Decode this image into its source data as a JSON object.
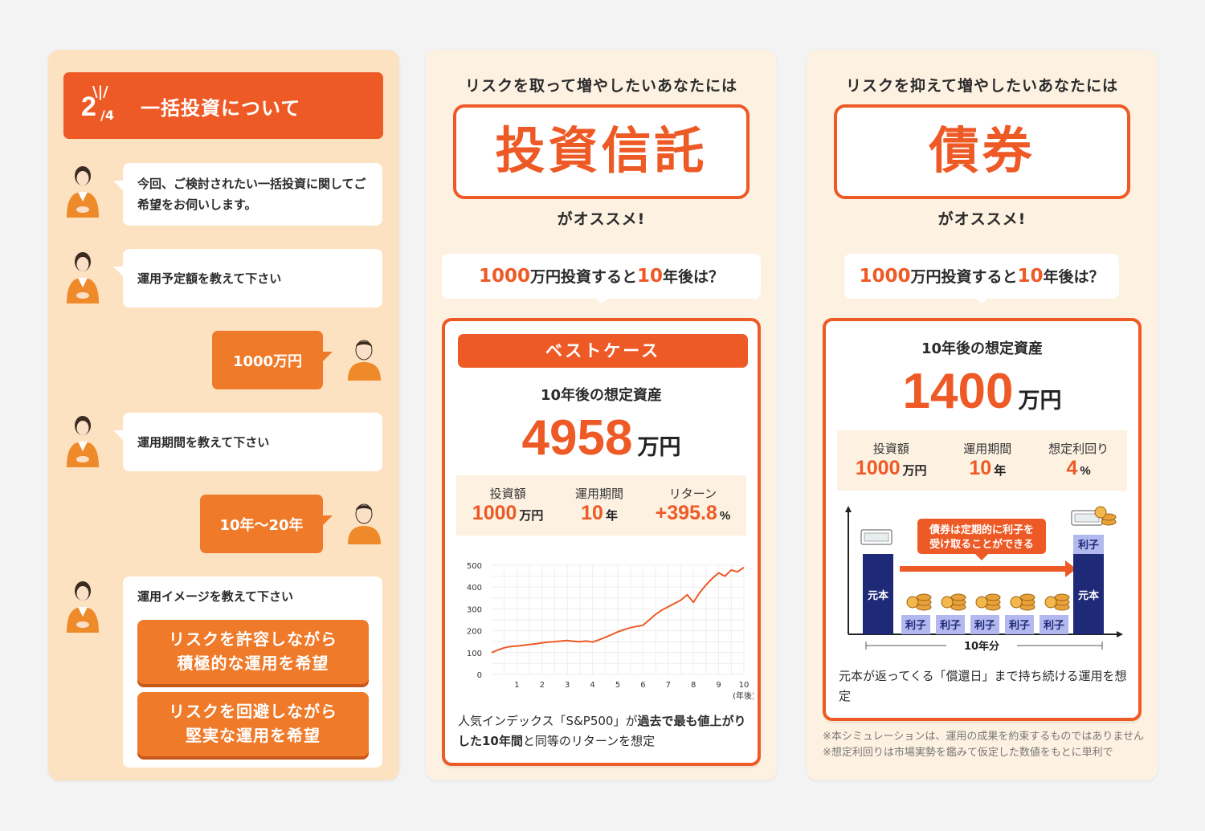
{
  "panel1": {
    "step_current": "2",
    "step_total": "4",
    "title": "一括投資について",
    "messages": [
      {
        "text": "今回、ご検討されたい一括投資に関してご希望をお伺いします。"
      },
      {
        "text": "運用予定額を教えて下さい"
      },
      {
        "text": "1000万円"
      },
      {
        "text": "運用期間を教えて下さい"
      },
      {
        "text": "10年〜20年"
      },
      {
        "text": "運用イメージを教えて下さい"
      }
    ],
    "choices": [
      {
        "line1": "リスクを許容しながら",
        "line2": "積極的な運用を希望"
      },
      {
        "line1": "リスクを回避しながら",
        "line2": "堅実な運用を希望"
      }
    ]
  },
  "panel2": {
    "heading": "リスクを取って増やしたいあなたには",
    "product": "投資信託",
    "recommend": "がオススメ!",
    "question": {
      "amount": "1000",
      "mid": "万円投資すると",
      "years": "10",
      "tail": "年後は？"
    },
    "case_label": "ベストケース",
    "caption": "10年後の想定資産",
    "result_value": "4958",
    "result_unit": "万円",
    "stats": [
      {
        "label": "投資額",
        "value": "1000",
        "unit": "万円"
      },
      {
        "label": "運用期間",
        "value": "10",
        "unit": "年"
      },
      {
        "label": "リターン",
        "value": "+395.8",
        "unit": "%"
      }
    ],
    "note": {
      "a": "人気インデックス「S&P500」が",
      "b": "過去で最も値上がりした10年間",
      "c": "と同等のリターンを想定"
    }
  },
  "chart_data": {
    "type": "line",
    "title": "",
    "xlabel": "(年後)",
    "ylabel": "",
    "x_ticks": [
      1,
      2,
      3,
      4,
      5,
      6,
      7,
      8,
      9,
      10
    ],
    "y_ticks": [
      0,
      100,
      200,
      300,
      400,
      500
    ],
    "xlim": [
      0,
      10
    ],
    "ylim": [
      0,
      500
    ],
    "grid": true,
    "series": [
      {
        "color": "#ee5a26",
        "x": [
          0,
          0.25,
          0.5,
          0.75,
          1,
          1.25,
          1.5,
          1.75,
          2,
          2.25,
          2.5,
          2.75,
          3,
          3.25,
          3.5,
          3.75,
          4,
          4.25,
          4.5,
          4.75,
          5,
          5.25,
          5.5,
          5.75,
          6,
          6.25,
          6.5,
          6.75,
          7,
          7.25,
          7.5,
          7.75,
          8,
          8.25,
          8.5,
          8.75,
          9,
          9.25,
          9.5,
          9.75,
          10
        ],
        "y": [
          100,
          112,
          122,
          128,
          130,
          133,
          137,
          140,
          145,
          148,
          150,
          153,
          155,
          152,
          150,
          153,
          148,
          158,
          170,
          182,
          195,
          205,
          214,
          220,
          225,
          250,
          275,
          295,
          310,
          325,
          340,
          365,
          330,
          375,
          410,
          440,
          465,
          450,
          478,
          470,
          490
        ]
      }
    ]
  },
  "panel3": {
    "heading": "リスクを抑えて増やしたいあなたには",
    "product": "債券",
    "recommend": "がオススメ!",
    "question": {
      "amount": "1000",
      "mid": "万円投資すると",
      "years": "10",
      "tail": "年後は？"
    },
    "caption": "10年後の想定資産",
    "result_value": "1400",
    "result_unit": "万円",
    "stats": [
      {
        "label": "投資額",
        "value": "1000",
        "unit": "万円"
      },
      {
        "label": "運用期間",
        "value": "10",
        "unit": "年"
      },
      {
        "label": "想定利回り",
        "value": "4",
        "unit": "%"
      }
    ],
    "diagram": {
      "callout": [
        "債券は定期的に利子を",
        "受け取ることができる"
      ],
      "principal": "元本",
      "interest": "利子",
      "span": "10年分"
    },
    "note": "元本が返ってくる「償還日」まで持ち続ける運用を想定",
    "footnotes": [
      "※本シミュレーションは、運用の成果を約束するものではありません",
      "※想定利回りは市場実勢を鑑みて仮定した数値をもとに単利で"
    ]
  },
  "colors": {
    "accent": "#ee5a26",
    "orange": "#ef7a2a",
    "navy": "#1e2a78",
    "lavender": "#b3b8ee"
  }
}
